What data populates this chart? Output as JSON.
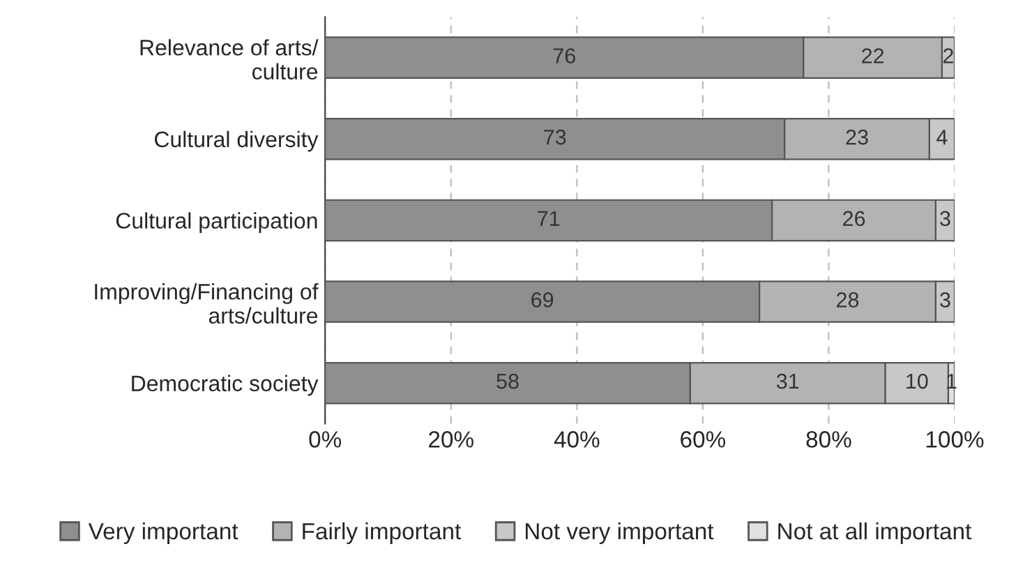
{
  "chart_data": {
    "type": "bar",
    "orientation": "horizontal",
    "stacked": true,
    "categories": [
      "Relevance of arts/\nculture",
      "Cultural diversity",
      "Cultural participation",
      "Improving/Financing of\narts/culture",
      "Democratic society"
    ],
    "series": [
      {
        "name": "Very important",
        "color": "#8f8f8f",
        "values": [
          76,
          73,
          71,
          69,
          58
        ]
      },
      {
        "name": "Fairly important",
        "color": "#b3b3b3",
        "values": [
          22,
          23,
          26,
          28,
          31
        ]
      },
      {
        "name": "Not very important",
        "color": "#c8c8c8",
        "values": [
          2,
          4,
          3,
          3,
          10
        ]
      },
      {
        "name": "Not at all important",
        "color": "#e0e0e0",
        "values": [
          null,
          null,
          null,
          null,
          1
        ]
      }
    ],
    "xlim": [
      0,
      100
    ],
    "xticks": [
      {
        "value": 0,
        "label": "0%"
      },
      {
        "value": 20,
        "label": "20%"
      },
      {
        "value": 40,
        "label": "40%"
      },
      {
        "value": 60,
        "label": "60%"
      },
      {
        "value": 80,
        "label": "80%"
      },
      {
        "value": 100,
        "label": "100%"
      }
    ],
    "grid": "x",
    "legend": "bottom",
    "data_labels": true
  }
}
